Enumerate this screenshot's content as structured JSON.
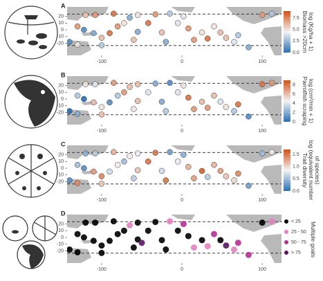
{
  "chart_data": [
    {
      "type": "scatter",
      "panel_label": "A",
      "colorbar_title": [
        "Biomass >20cm",
        "log (Kg/ha + 1)"
      ],
      "clim": [
        0,
        9
      ],
      "cticks": [
        {
          "value": 0,
          "label": "0.0"
        },
        2.5,
        {
          "value": 5,
          "label": "5.0"
        },
        7.5
      ],
      "cmap": [
        "#2a6fb5",
        "#f4f4f4",
        "#d24f14"
      ],
      "xlim": [
        -143,
        124
      ],
      "ylim": [
        -38,
        34
      ],
      "xticks": [
        -100,
        0,
        100
      ],
      "yticks": [
        20,
        10,
        0,
        -10,
        -20
      ],
      "hlines": [
        23.4,
        -23.4
      ],
      "x": [
        -120,
        -108,
        -85,
        -55,
        -33,
        -15,
        -122,
        -110,
        -100,
        -80,
        -72,
        -55,
        -42,
        -25,
        2,
        8,
        25,
        32,
        48,
        65,
        83,
        100,
        112,
        -140,
        -130,
        -100,
        -60,
        -20,
        15,
        -90,
        40,
        -5,
        70,
        55,
        -130,
        -65
      ],
      "y": [
        22,
        22,
        24,
        22,
        23,
        24,
        0,
        -5,
        -12,
        5,
        10,
        -3,
        10,
        -4,
        20,
        2,
        -4,
        -13,
        -4,
        -18,
        -26,
        22,
        24,
        -18,
        -22,
        -23,
        -15,
        -18,
        -15,
        -5,
        5,
        10,
        -8,
        -12,
        5,
        18
      ],
      "values": [
        6,
        7,
        8,
        5,
        7,
        3,
        1,
        2,
        6,
        7,
        5,
        2,
        8,
        6,
        4,
        7,
        5,
        8,
        6,
        4,
        2,
        7,
        3,
        1,
        5,
        3,
        6,
        2,
        7,
        8,
        5,
        4,
        3,
        6,
        7,
        2
      ]
    },
    {
      "type": "scatter",
      "panel_label": "B",
      "colorbar_title": [
        "Parrotfish scraping",
        "log (cm²/min + 1)"
      ],
      "clim": [
        0,
        9
      ],
      "cticks": [
        0,
        2,
        4,
        6,
        8
      ],
      "cmap": [
        "#2a6fb5",
        "#f4f4f4",
        "#d24f14"
      ],
      "xlim": [
        -143,
        124
      ],
      "ylim": [
        -38,
        34
      ],
      "xticks": [
        -100,
        0,
        100
      ],
      "yticks": [
        20,
        10,
        0,
        -10,
        -20
      ],
      "hlines": [
        23.4,
        -23.4
      ],
      "x": [
        -120,
        -108,
        -85,
        -55,
        -33,
        -15,
        -122,
        -110,
        -100,
        -80,
        -72,
        -55,
        -42,
        -25,
        2,
        8,
        25,
        32,
        48,
        65,
        83,
        100,
        112,
        -140,
        -130,
        -100,
        -60,
        -20,
        15,
        -90,
        40,
        -5,
        70,
        55,
        -130,
        -65
      ],
      "y": [
        22,
        22,
        24,
        22,
        23,
        24,
        0,
        -5,
        -12,
        5,
        10,
        -3,
        10,
        -4,
        20,
        2,
        -4,
        -13,
        -4,
        -18,
        -26,
        22,
        24,
        -18,
        -22,
        -23,
        -15,
        -18,
        -15,
        -5,
        5,
        10,
        -8,
        -12,
        5,
        18
      ],
      "values": [
        5,
        4,
        7,
        6,
        2,
        1,
        0,
        6,
        5,
        3,
        7,
        6,
        4,
        2,
        5,
        8,
        6,
        7,
        4,
        3,
        1,
        8,
        7,
        0,
        2,
        6,
        5,
        3,
        7,
        1,
        6,
        4,
        8,
        5,
        3,
        6
      ]
    },
    {
      "type": "scatter",
      "panel_label": "C",
      "colorbar_title": [
        "Trait diversity",
        "log (equivalent number",
        "of species)"
      ],
      "clim": [
        0,
        1.7
      ],
      "cticks": [
        {
          "value": 0,
          "label": "0.0"
        },
        0.5,
        {
          "value": 1,
          "label": "1.0"
        },
        1.5
      ],
      "cmap": [
        "#2a6fb5",
        "#f4f4f4",
        "#d24f14"
      ],
      "xlim": [
        -143,
        124
      ],
      "ylim": [
        -38,
        34
      ],
      "xticks": [
        -100,
        0,
        100
      ],
      "yticks": [
        20,
        10,
        0,
        -10,
        -20
      ],
      "hlines": [
        23.4,
        -23.4
      ],
      "x": [
        -120,
        -108,
        -85,
        -55,
        -33,
        -15,
        -122,
        -110,
        -100,
        -80,
        -72,
        -55,
        -42,
        -25,
        2,
        8,
        25,
        32,
        48,
        65,
        83,
        100,
        112,
        -140,
        -130,
        -100,
        -60,
        -20,
        15,
        -90,
        40,
        -5,
        70,
        55,
        -130,
        -65
      ],
      "y": [
        22,
        22,
        24,
        22,
        23,
        24,
        0,
        -5,
        -12,
        5,
        10,
        -3,
        10,
        -4,
        20,
        2,
        -4,
        -13,
        -4,
        -18,
        -26,
        22,
        24,
        -18,
        -22,
        -23,
        -15,
        -18,
        -15,
        -5,
        5,
        10,
        -8,
        -12,
        5,
        18
      ],
      "values": [
        0.4,
        0.6,
        1.2,
        0.8,
        1.5,
        0.3,
        0.2,
        1.3,
        1.4,
        0.9,
        0.5,
        1.1,
        1.5,
        0.7,
        0.4,
        1.2,
        1.6,
        0.6,
        1.3,
        1.0,
        0.3,
        0.5,
        0.9,
        0.2,
        1.4,
        1.1,
        0.6,
        1.5,
        1.3,
        0.7,
        1.2,
        0.8,
        1.4,
        1.1,
        0.5,
        0.9
      ]
    },
    {
      "type": "scatter",
      "panel_label": "D",
      "legend_title": "Multiple goals",
      "xlim": [
        -143,
        124
      ],
      "ylim": [
        -38,
        34
      ],
      "xticks": [
        -100,
        0,
        100
      ],
      "yticks": [
        20,
        10,
        0,
        -10,
        -20
      ],
      "hlines": [
        23.4,
        -23.4
      ],
      "series": [
        {
          "name": "< 25",
          "color": "#000000",
          "x": [
            -120,
            -108,
            -85,
            -55,
            -33,
            -122,
            -110,
            -100,
            -80,
            -72,
            -55,
            -42,
            -25,
            8,
            25,
            48,
            -140,
            -130,
            -100,
            -60,
            -20,
            -90,
            -5,
            -130,
            100
          ],
          "y": [
            22,
            22,
            24,
            22,
            23,
            0,
            -5,
            -12,
            5,
            10,
            -3,
            10,
            -4,
            2,
            -4,
            -4,
            -18,
            -22,
            -23,
            -15,
            -18,
            -5,
            10,
            5,
            22
          ]
        },
        {
          "name": "25 - 50",
          "color": "#e47fc0",
          "x": [
            -15,
            32,
            65,
            112,
            -65,
            15
          ],
          "y": [
            24,
            -13,
            -18,
            24,
            18,
            -15
          ]
        },
        {
          "name": "50 - 75",
          "color": "#b5318f",
          "x": [
            2,
            40,
            70,
            83
          ],
          "y": [
            20,
            5,
            -8,
            -26
          ]
        },
        {
          "name": "> 75",
          "color": "#5c1464",
          "x": [
            55,
            -50
          ],
          "y": [
            -12,
            -8
          ]
        }
      ]
    }
  ]
}
